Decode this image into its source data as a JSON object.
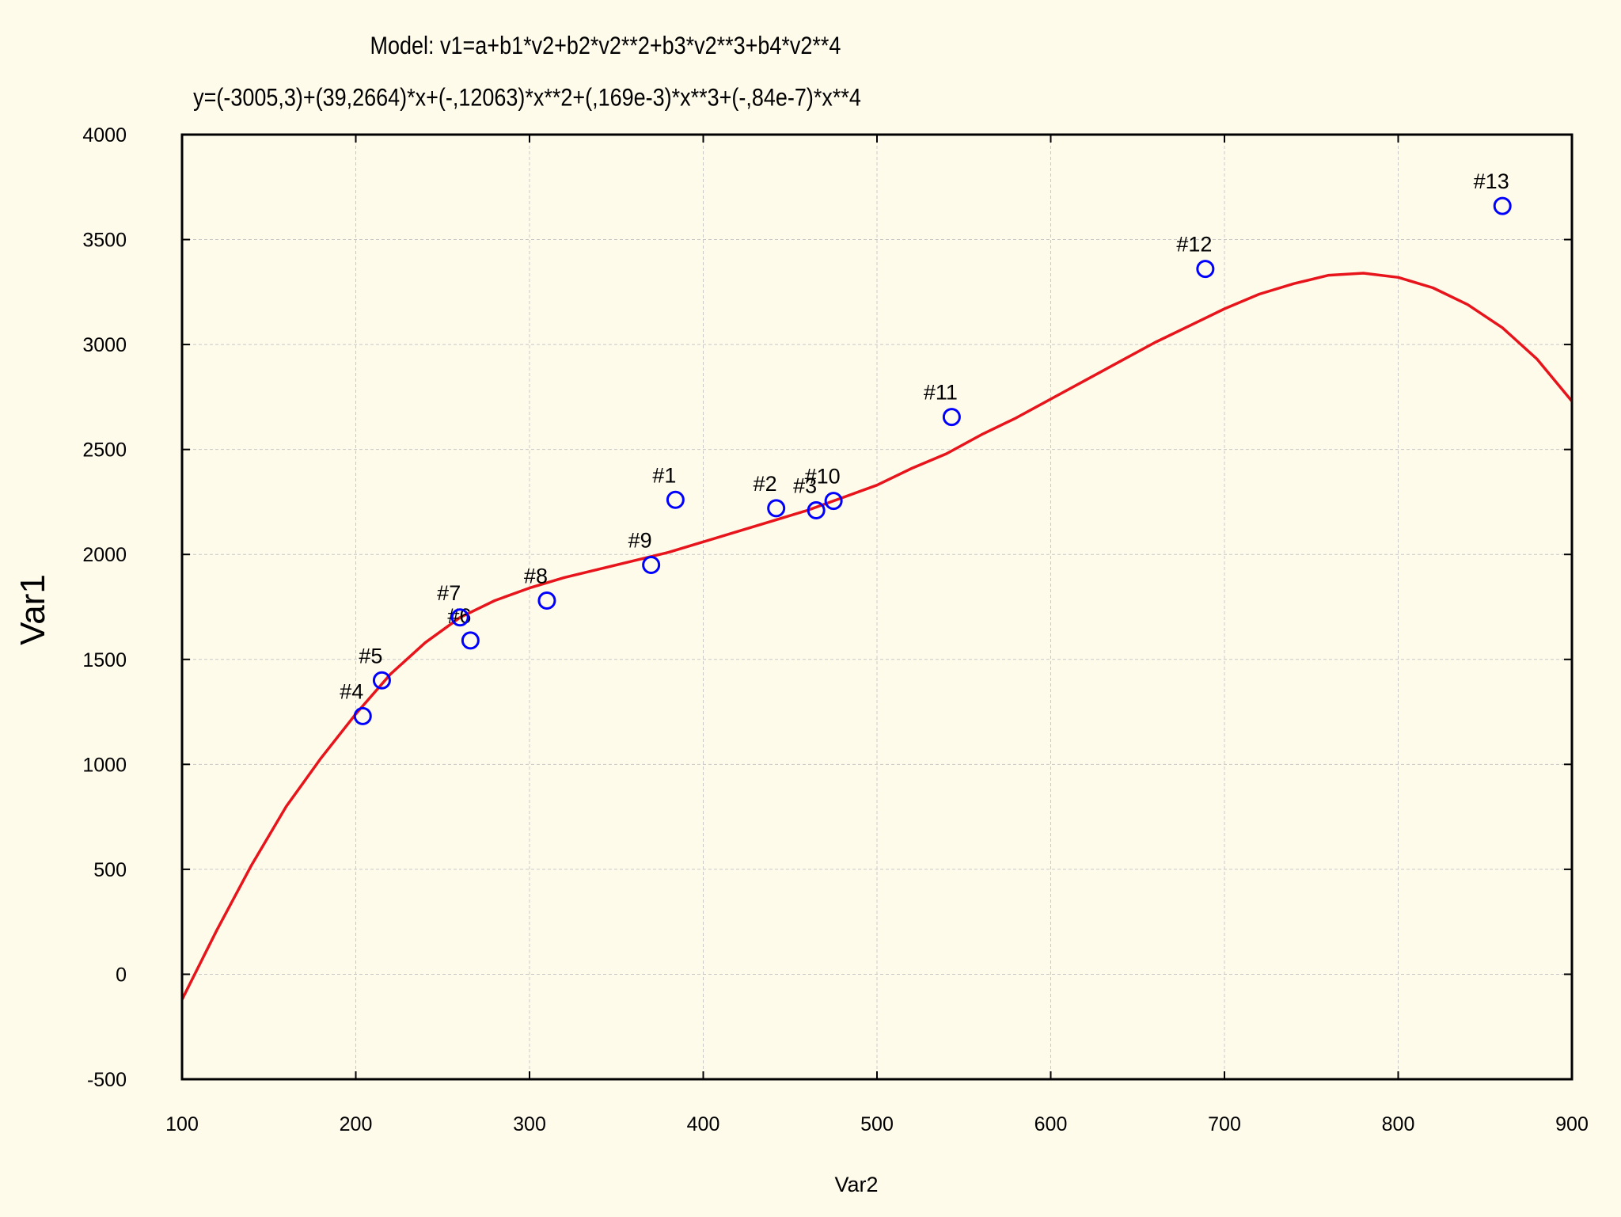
{
  "chart_data": {
    "type": "scatter",
    "title": "Model: v1=a+b1*v2+b2*v2**2+b3*v2**3+b4*v2**4",
    "subtitle": "y=(-3005,3)+(39,2664)*x+(-,12063)*x**2+(,169e-3)*x**3+(-,84e-7)*x**4",
    "xlabel": "Var2",
    "ylabel": "Var1",
    "xlim": [
      100,
      900
    ],
    "ylim": [
      -500,
      4000
    ],
    "xticks": [
      100,
      200,
      300,
      400,
      500,
      600,
      700,
      800,
      900
    ],
    "yticks": [
      -500,
      0,
      500,
      1000,
      1500,
      2000,
      2500,
      3000,
      3500,
      4000
    ],
    "grid": true,
    "points": [
      {
        "label": "#1",
        "x": 384,
        "y": 2260
      },
      {
        "label": "#2",
        "x": 442,
        "y": 2220
      },
      {
        "label": "#3",
        "x": 465,
        "y": 2210
      },
      {
        "label": "#4",
        "x": 204,
        "y": 1230
      },
      {
        "label": "#5",
        "x": 215,
        "y": 1400
      },
      {
        "label": "#6",
        "x": 266,
        "y": 1590
      },
      {
        "label": "#7",
        "x": 260,
        "y": 1700
      },
      {
        "label": "#8",
        "x": 310,
        "y": 1780
      },
      {
        "label": "#9",
        "x": 370,
        "y": 1950
      },
      {
        "label": "#10",
        "x": 475,
        "y": 2255
      },
      {
        "label": "#11",
        "x": 543,
        "y": 2655
      },
      {
        "label": "#12",
        "x": 689,
        "y": 3360
      },
      {
        "label": "#13",
        "x": 860,
        "y": 3660
      }
    ],
    "fit_curve": {
      "points": [
        [
          100,
          -120
        ],
        [
          120,
          210
        ],
        [
          140,
          520
        ],
        [
          160,
          800
        ],
        [
          180,
          1030
        ],
        [
          200,
          1240
        ],
        [
          220,
          1430
        ],
        [
          240,
          1580
        ],
        [
          260,
          1700
        ],
        [
          280,
          1780
        ],
        [
          300,
          1840
        ],
        [
          320,
          1890
        ],
        [
          340,
          1930
        ],
        [
          360,
          1970
        ],
        [
          380,
          2010
        ],
        [
          400,
          2060
        ],
        [
          420,
          2110
        ],
        [
          440,
          2160
        ],
        [
          460,
          2210
        ],
        [
          480,
          2270
        ],
        [
          500,
          2330
        ],
        [
          520,
          2410
        ],
        [
          540,
          2480
        ],
        [
          560,
          2570
        ],
        [
          580,
          2650
        ],
        [
          600,
          2740
        ],
        [
          620,
          2830
        ],
        [
          640,
          2920
        ],
        [
          660,
          3010
        ],
        [
          680,
          3090
        ],
        [
          700,
          3170
        ],
        [
          720,
          3240
        ],
        [
          740,
          3290
        ],
        [
          760,
          3330
        ],
        [
          780,
          3340
        ],
        [
          800,
          3320
        ],
        [
          820,
          3270
        ],
        [
          840,
          3190
        ],
        [
          860,
          3080
        ],
        [
          880,
          2930
        ],
        [
          900,
          2730
        ],
        [
          910,
          2650
        ]
      ]
    },
    "colors": {
      "background": "#fffbeb",
      "marker": "#0000ff",
      "curve": "#e8141b",
      "grid": "#c8c8c8",
      "frame": "#000000"
    }
  }
}
